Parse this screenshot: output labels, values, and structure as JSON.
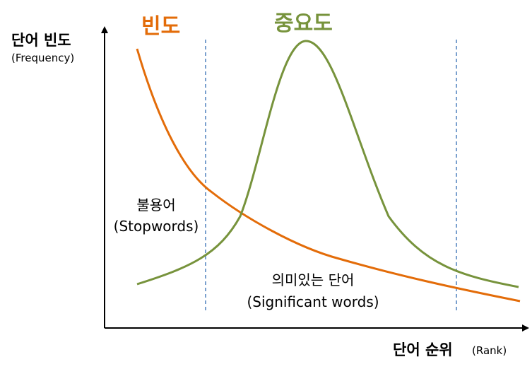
{
  "y_axis": {
    "label": "단어 빈도",
    "sublabel": "(Frequency)"
  },
  "x_axis": {
    "label": "단어 순위",
    "sublabel": "(Rank)"
  },
  "curves": {
    "frequency": {
      "label": "빈도",
      "color": "#e36c09"
    },
    "importance": {
      "label": "중요도",
      "color": "#77933c"
    }
  },
  "divider_color": "#4f81bd",
  "regions": {
    "stopwords": {
      "label": "불용어",
      "sublabel": "(Stopwords)"
    },
    "significant": {
      "label": "의미있는 단어",
      "sublabel": "(Significant words)"
    }
  }
}
